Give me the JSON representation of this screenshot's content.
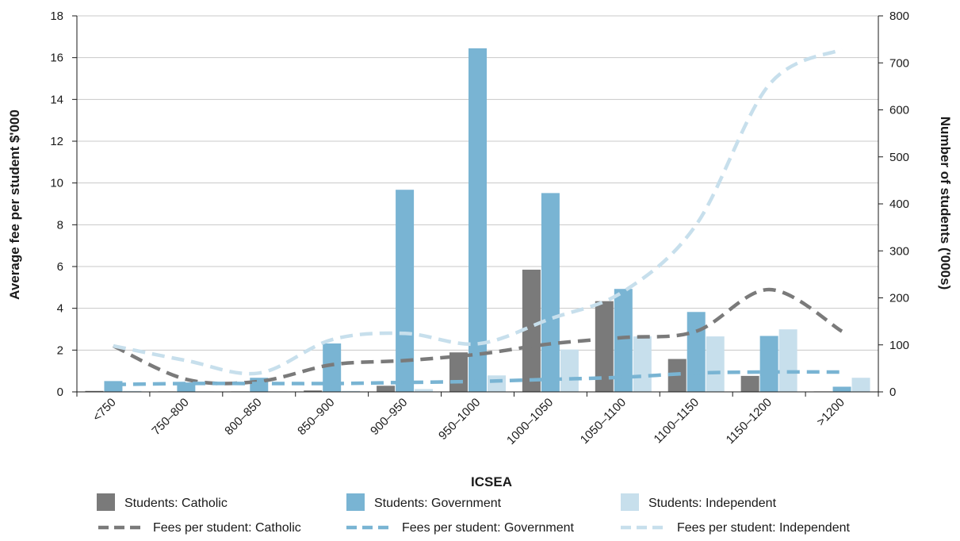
{
  "chart_data": {
    "type": "bar",
    "xlabel": "ICSEA",
    "ylabel_left": "Average fee per student $'000",
    "ylabel_right": "Number of students ('000s)",
    "ylim_left": [
      0,
      18
    ],
    "ylim_right": [
      0,
      800
    ],
    "yticks_left": [
      "0",
      "2",
      "4",
      "6",
      "8",
      "10",
      "12",
      "14",
      "16",
      "18"
    ],
    "yticks_right": [
      "0",
      "100",
      "200",
      "300",
      "400",
      "500",
      "600",
      "700",
      "800"
    ],
    "grid": true,
    "legend_position": "bottom",
    "categories": [
      "<750",
      "750–800",
      "800–850",
      "850–900",
      "900–950",
      "950–1000",
      "1000–1050",
      "1050–1100",
      "1100–1150",
      "1150–1200",
      ">1200"
    ],
    "bar_series": [
      {
        "name": "Students: Catholic",
        "color": "#7a7a7a",
        "axis": "right",
        "values": [
          2,
          1,
          1,
          3,
          13,
          84,
          260,
          193,
          70,
          34,
          1
        ]
      },
      {
        "name": "Students: Government",
        "color": "#79b4d3",
        "axis": "right",
        "values": [
          23,
          20,
          30,
          103,
          430,
          731,
          423,
          219,
          170,
          119,
          11
        ]
      },
      {
        "name": "Students: Independent",
        "color": "#c7dfec",
        "axis": "right",
        "values": [
          2,
          1,
          1,
          2,
          6,
          35,
          90,
          118,
          118,
          133,
          30
        ]
      }
    ],
    "line_series": [
      {
        "name": "Fees per student: Catholic",
        "color": "#7a7a7a",
        "axis": "left",
        "style": "dashed",
        "values": [
          2.2,
          0.6,
          0.5,
          1.3,
          1.5,
          1.8,
          2.3,
          2.6,
          2.9,
          4.9,
          2.9
        ]
      },
      {
        "name": "Fees per student: Government",
        "color": "#79b4d3",
        "axis": "left",
        "style": "dashed",
        "values": [
          0.35,
          0.4,
          0.4,
          0.4,
          0.45,
          0.5,
          0.6,
          0.7,
          0.9,
          0.95,
          0.95
        ]
      },
      {
        "name": "Fees per student: Independent",
        "color": "#c7dfec",
        "axis": "left",
        "style": "dashed",
        "values": [
          2.2,
          1.5,
          0.9,
          2.5,
          2.8,
          2.3,
          3.5,
          4.8,
          8.0,
          14.7,
          16.4
        ]
      }
    ]
  }
}
